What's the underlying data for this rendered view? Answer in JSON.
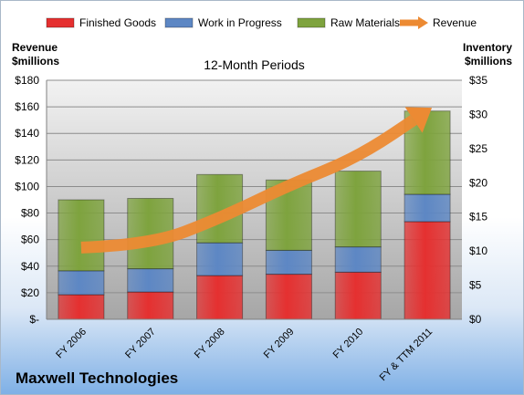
{
  "company": "Maxwell Technologies",
  "chart_data": {
    "type": "bar",
    "stacked": true,
    "subtitle": "12-Month Periods",
    "left_axis_label": [
      "Revenue",
      "$millions"
    ],
    "right_axis_label": [
      "Inventory",
      "$millions"
    ],
    "categories": [
      "FY 2006",
      "FY 2007",
      "FY 2008",
      "FY 2009",
      "FY 2010",
      "FY & TTM 2011"
    ],
    "ylim_left": [
      0,
      180
    ],
    "ylim_right": [
      0,
      35
    ],
    "left_ticks": [
      "$-",
      "$20",
      "$40",
      "$60",
      "$80",
      "$100",
      "$120",
      "$140",
      "$160",
      "$180"
    ],
    "right_ticks": [
      "$0",
      "$5",
      "$10",
      "$15",
      "$20",
      "$25",
      "$30",
      "$35"
    ],
    "legend_position": "top",
    "grid": true,
    "series": [
      {
        "name": "Finished Goods",
        "axis": "right",
        "kind": "bar",
        "color": "#e53030",
        "values": [
          3.6,
          4.0,
          6.4,
          6.6,
          6.9,
          14.3
        ]
      },
      {
        "name": "Work in Progress",
        "axis": "right",
        "kind": "bar",
        "color": "#5d87c4",
        "values": [
          3.5,
          3.4,
          4.8,
          3.5,
          3.7,
          4.0
        ]
      },
      {
        "name": "Raw Materials",
        "axis": "right",
        "kind": "bar",
        "color": "#7ea33e",
        "values": [
          10.4,
          10.3,
          10.0,
          10.3,
          11.1,
          12.2
        ]
      },
      {
        "name": "Revenue",
        "axis": "left",
        "kind": "arrow-line",
        "color": "#ec8a33",
        "values": [
          54,
          56,
          76,
          101,
          122,
          157
        ]
      }
    ]
  }
}
